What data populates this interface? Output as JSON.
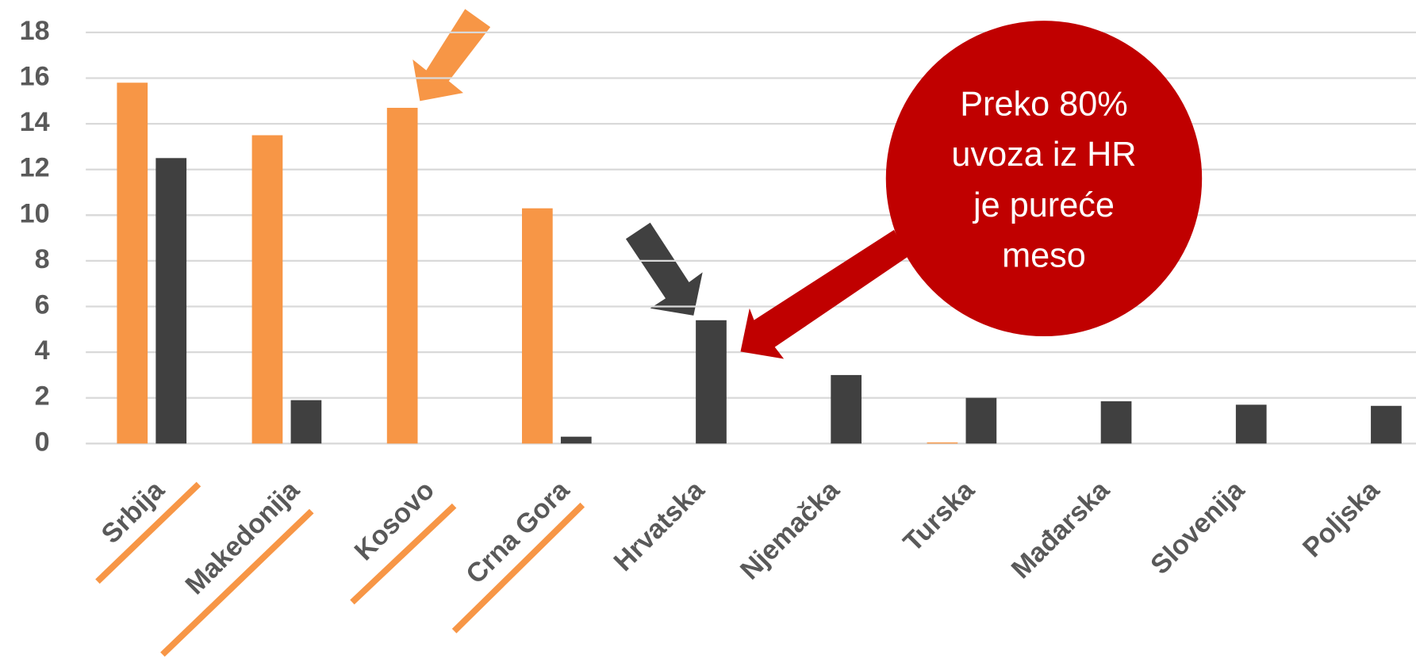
{
  "chart_data": {
    "type": "bar",
    "categories": [
      "Srbija",
      "Makedonija",
      "Kosovo",
      "Crna Gora",
      "Hrvatska",
      "Njemačka",
      "Turska",
      "Mađarska",
      "Slovenija",
      "Poljska"
    ],
    "series": [
      {
        "color": "#f79646",
        "values": [
          15.8,
          13.5,
          14.7,
          10.3,
          0,
          0,
          0.05,
          0,
          0,
          0
        ]
      },
      {
        "color": "#404040",
        "values": [
          12.5,
          1.9,
          0,
          0.3,
          5.4,
          3.0,
          2.0,
          1.85,
          1.7,
          1.65
        ]
      }
    ],
    "ylim": [
      0,
      18
    ],
    "yticks": [
      0,
      2,
      4,
      6,
      8,
      10,
      12,
      14,
      16,
      18
    ],
    "grid": true,
    "annotation": {
      "lines": [
        "Preko 80%",
        "uvoza iz HR",
        "je pureće",
        "meso"
      ],
      "color": "#c00000"
    }
  }
}
